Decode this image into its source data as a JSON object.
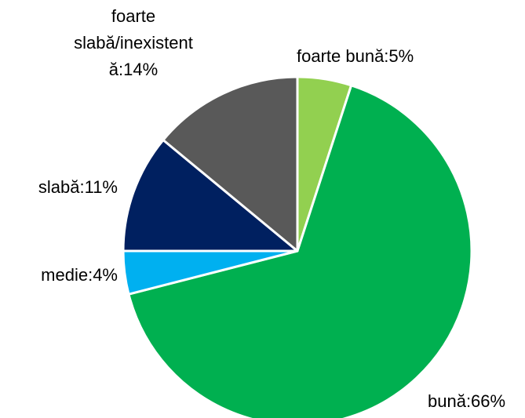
{
  "chart_data": {
    "type": "pie",
    "values": [
      5,
      66,
      4,
      11,
      14
    ],
    "value_labels": [
      "foarte bună:5%",
      "bună:66%",
      "medie:4%",
      "slabă:11%",
      [
        "foarte",
        "slabă/inexistent",
        "ă:14%"
      ]
    ],
    "colors": [
      "#92d050",
      "#00b050",
      "#00b0f0",
      "#002060",
      "#595959"
    ]
  }
}
